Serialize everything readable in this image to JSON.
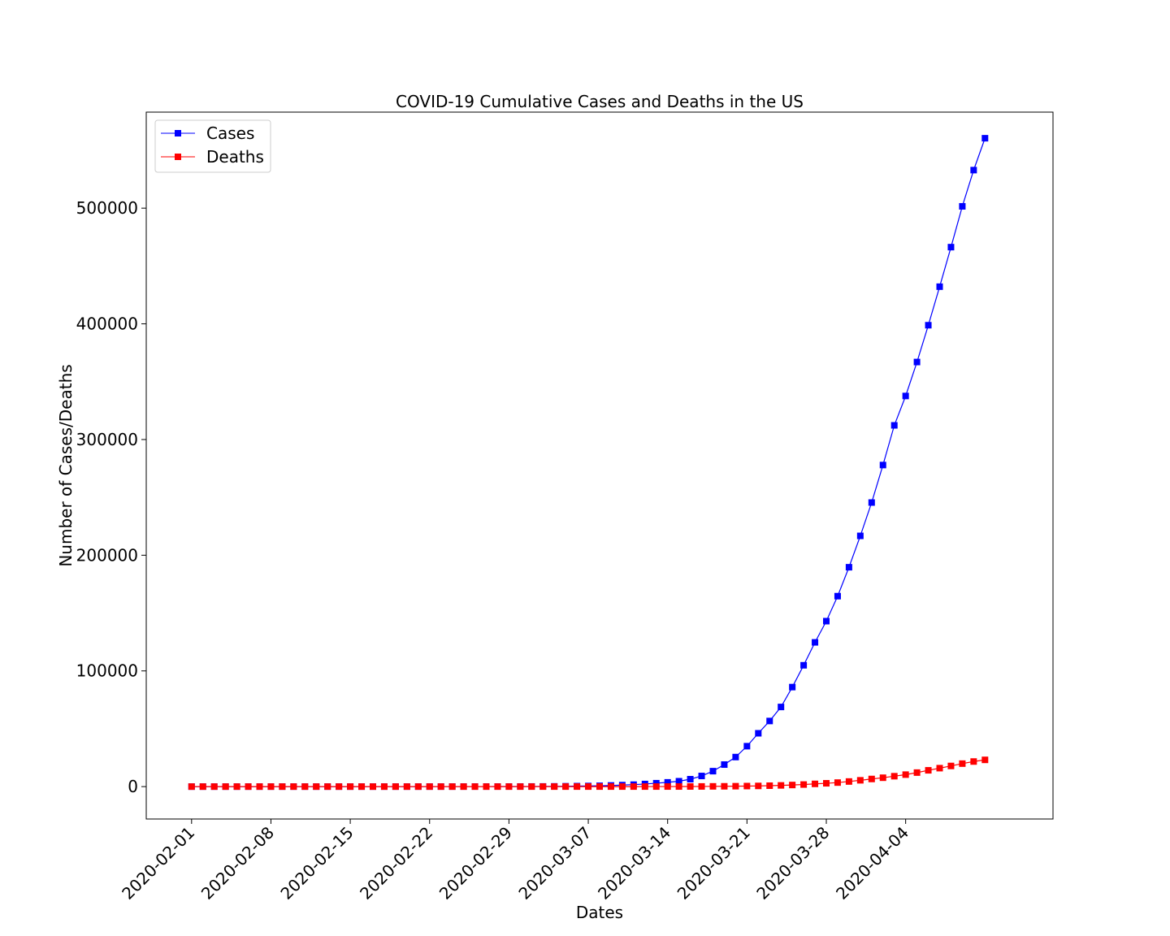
{
  "chart_data": {
    "type": "line",
    "title": "COVID-19 Cumulative Cases and Deaths in the US",
    "xlabel": "Dates",
    "ylabel": "Number of Cases/Deaths",
    "x_start": "2020-02-01",
    "x_end": "2020-04-12",
    "xlim": [
      "2020-01-28",
      "2020-04-17"
    ],
    "ylim": [
      -28000,
      583000
    ],
    "x_ticks": [
      "2020-02-01",
      "2020-02-08",
      "2020-02-15",
      "2020-02-22",
      "2020-02-29",
      "2020-03-07",
      "2020-03-14",
      "2020-03-21",
      "2020-03-28",
      "2020-04-04"
    ],
    "y_ticks": [
      0,
      100000,
      200000,
      300000,
      400000,
      500000
    ],
    "grid": false,
    "legend_position": "top-left",
    "series": [
      {
        "name": "Cases",
        "color": "#0000ff",
        "marker": "square",
        "values": [
          8,
          8,
          11,
          11,
          11,
          12,
          12,
          12,
          12,
          12,
          13,
          13,
          14,
          15,
          15,
          15,
          15,
          25,
          25,
          25,
          25,
          35,
          35,
          35,
          53,
          57,
          60,
          68,
          75,
          100,
          124,
          158,
          221,
          319,
          435,
          541,
          704,
          994,
          1301,
          1697,
          2247,
          2943,
          3680,
          4663,
          6411,
          9197,
          13357,
          19038,
          25526,
          34938,
          46096,
          56714,
          68841,
          86012,
          104865,
          124686,
          143025,
          164620,
          189618,
          216722,
          245540,
          277953,
          312249,
          337635,
          367004,
          398809,
          432132,
          466299,
          501560,
          532879,
          560433
        ]
      },
      {
        "name": "Deaths",
        "color": "#ff0000",
        "marker": "square",
        "values": [
          0,
          0,
          0,
          0,
          0,
          0,
          0,
          0,
          0,
          0,
          0,
          0,
          0,
          0,
          0,
          0,
          0,
          0,
          0,
          0,
          0,
          0,
          0,
          0,
          0,
          0,
          0,
          0,
          0,
          1,
          1,
          6,
          9,
          11,
          12,
          15,
          19,
          22,
          26,
          30,
          38,
          42,
          57,
          69,
          105,
          150,
          216,
          260,
          345,
          463,
          590,
          798,
          1041,
          1383,
          1795,
          2357,
          2863,
          3477,
          4421,
          5458,
          6598,
          7678,
          8991,
          10363,
          12122,
          14082,
          15947,
          17855,
          19871,
          21678,
          23114
        ]
      }
    ]
  }
}
